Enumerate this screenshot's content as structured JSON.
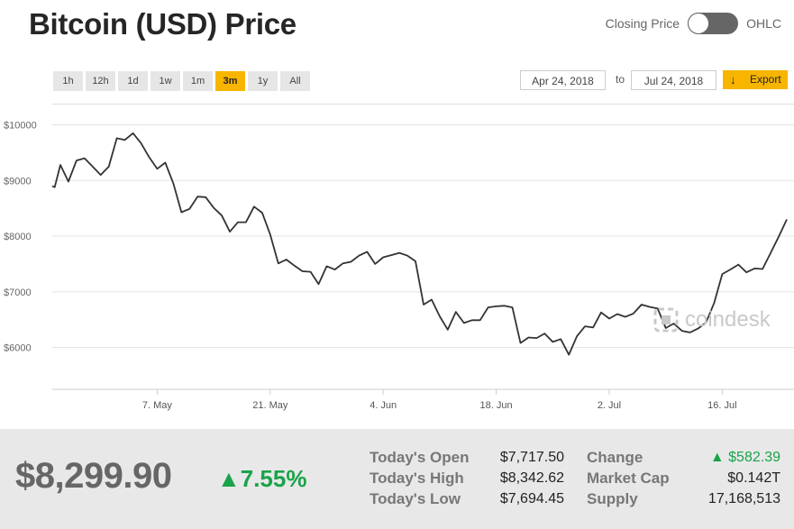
{
  "title": "Bitcoin (USD) Price",
  "toggle": {
    "left_label": "Closing Price",
    "right_label": "OHLC"
  },
  "ranges": [
    "1h",
    "12h",
    "1d",
    "1w",
    "1m",
    "3m",
    "1y",
    "All"
  ],
  "active_range": "3m",
  "date_from": "Apr 24, 2018",
  "date_to_label": "to",
  "date_to": "Jul 24, 2018",
  "export_label": "Export",
  "watermark": "coindesk",
  "stats": {
    "price": "$8,299.90",
    "change_pct": "7.55%",
    "open_label": "Today's Open",
    "open_value": "$7,717.50",
    "high_label": "Today's High",
    "high_value": "$8,342.62",
    "low_label": "Today's Low",
    "low_value": "$7,694.45",
    "change_label": "Change",
    "change_value": "$582.39",
    "mcap_label": "Market Cap",
    "mcap_value": "$0.142T",
    "supply_label": "Supply",
    "supply_value": "17,168,513"
  },
  "colors": {
    "accent": "#f7b500",
    "positive": "#1aa34a",
    "line": "#333333"
  },
  "chart_data": {
    "type": "line",
    "ylim": [
      5200,
      10300
    ],
    "y_ticks": [
      6000,
      7000,
      8000,
      9000,
      10000
    ],
    "y_tick_labels": [
      "$6000",
      "$7000",
      "$8000",
      "$9000",
      "$10000"
    ],
    "x_tick_labels": [
      "7. May",
      "21. May",
      "4. Jun",
      "18. Jun",
      "2. Jul",
      "16. Jul"
    ],
    "x_tick_days": [
      13,
      27,
      41,
      55,
      69,
      83
    ],
    "grid": true,
    "series": [
      {
        "days": [
          0,
          0.3,
          1,
          2,
          3,
          4,
          5,
          6,
          7,
          8,
          9,
          10,
          11,
          12,
          13,
          14,
          15,
          16,
          17,
          18,
          19,
          20,
          21,
          22,
          23,
          24,
          25,
          26,
          27,
          28,
          29,
          30,
          31,
          32,
          33,
          34,
          35,
          36,
          37,
          38,
          39,
          40,
          41,
          42,
          43,
          44,
          45,
          46,
          47,
          48,
          49,
          50,
          51,
          52,
          53,
          54,
          55,
          56,
          57,
          58,
          59,
          60,
          61,
          62,
          63,
          64,
          65,
          66,
          67,
          68,
          69,
          70,
          71,
          72,
          73,
          74,
          75,
          76,
          77,
          78,
          79,
          80,
          81,
          82,
          83,
          84,
          85,
          86,
          87,
          88,
          89,
          90,
          91
        ],
        "values": [
          8900,
          8880,
          9280,
          8980,
          9360,
          9400,
          9250,
          9100,
          9250,
          9760,
          9730,
          9850,
          9670,
          9420,
          9210,
          9320,
          8950,
          8430,
          8490,
          8710,
          8700,
          8510,
          8370,
          8080,
          8250,
          8250,
          8530,
          8420,
          8030,
          7510,
          7580,
          7470,
          7370,
          7360,
          7140,
          7460,
          7400,
          7510,
          7540,
          7650,
          7720,
          7500,
          7620,
          7660,
          7700,
          7650,
          7550,
          6770,
          6860,
          6560,
          6320,
          6640,
          6440,
          6490,
          6490,
          6720,
          6740,
          6750,
          6720,
          6080,
          6180,
          6170,
          6250,
          6100,
          6150,
          5870,
          6200,
          6380,
          6360,
          6630,
          6520,
          6600,
          6550,
          6610,
          6770,
          6730,
          6700,
          6350,
          6430,
          6300,
          6270,
          6340,
          6450,
          6800,
          7320,
          7400,
          7490,
          7350,
          7420,
          7410,
          7700,
          7990,
          8300
        ]
      }
    ]
  }
}
